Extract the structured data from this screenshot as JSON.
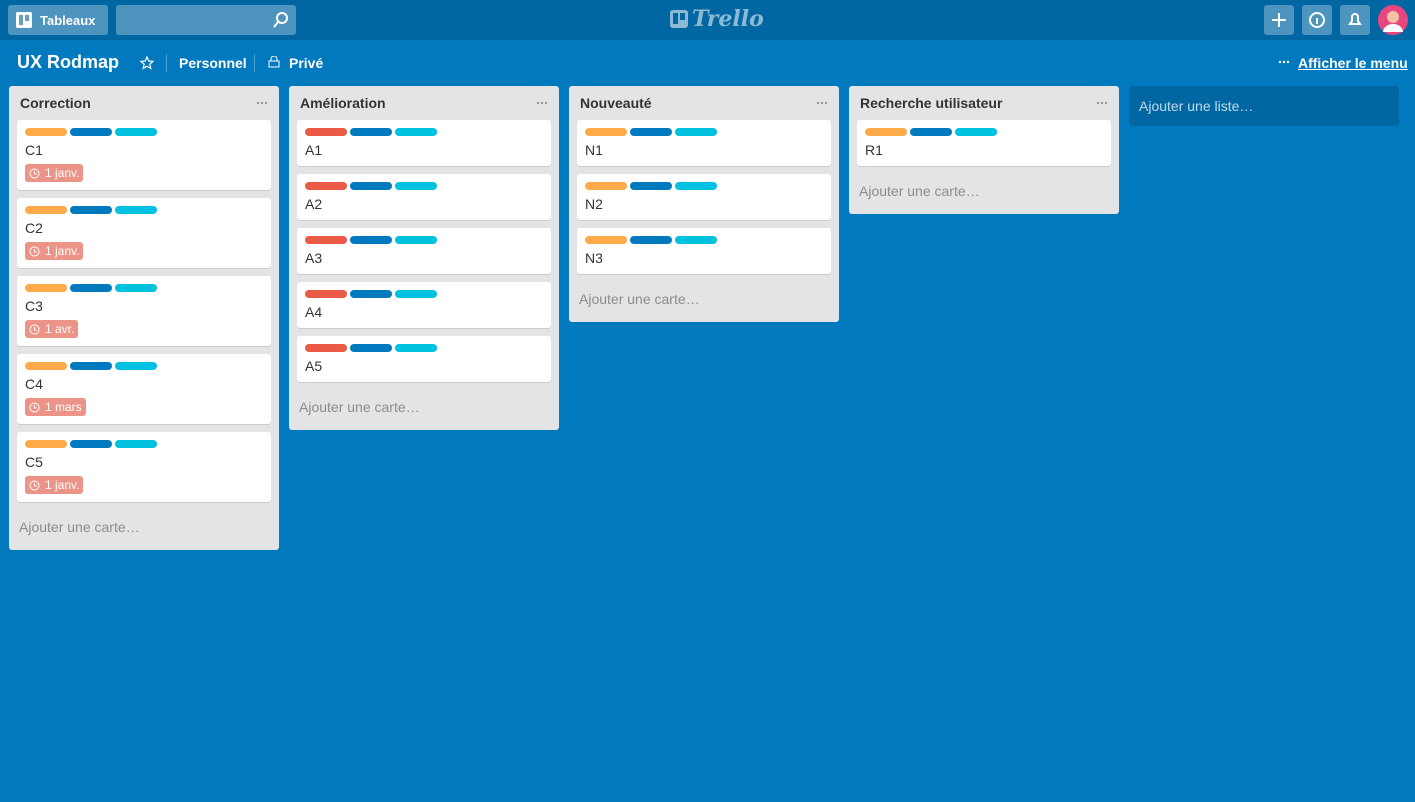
{
  "header": {
    "boards_button": "Tableaux",
    "logo": "Trello"
  },
  "board": {
    "title": "UX Rodmap",
    "team": "Personnel",
    "visibility": "Privé",
    "menu": "Afficher le menu"
  },
  "lists": [
    {
      "name": "Correction",
      "add_card": "Ajouter une carte…",
      "cards": [
        {
          "title": "C1",
          "labels": [
            "#ffab4a",
            "#0079bf",
            "#00c2e0"
          ],
          "due": "1 janv."
        },
        {
          "title": "C2",
          "labels": [
            "#ffab4a",
            "#0079bf",
            "#00c2e0"
          ],
          "due": "1 janv."
        },
        {
          "title": "C3",
          "labels": [
            "#ffab4a",
            "#0079bf",
            "#00c2e0"
          ],
          "due": "1 avr."
        },
        {
          "title": "C4",
          "labels": [
            "#ffab4a",
            "#0079bf",
            "#00c2e0"
          ],
          "due": "1 mars"
        },
        {
          "title": "C5",
          "labels": [
            "#ffab4a",
            "#0079bf",
            "#00c2e0"
          ],
          "due": "1 janv."
        }
      ]
    },
    {
      "name": "Amélioration",
      "add_card": "Ajouter une carte…",
      "cards": [
        {
          "title": "A1",
          "labels": [
            "#eb5a46",
            "#0079bf",
            "#00c2e0"
          ]
        },
        {
          "title": "A2",
          "labels": [
            "#eb5a46",
            "#0079bf",
            "#00c2e0"
          ]
        },
        {
          "title": "A3",
          "labels": [
            "#eb5a46",
            "#0079bf",
            "#00c2e0"
          ]
        },
        {
          "title": "A4",
          "labels": [
            "#eb5a46",
            "#0079bf",
            "#00c2e0"
          ]
        },
        {
          "title": "A5",
          "labels": [
            "#eb5a46",
            "#0079bf",
            "#00c2e0"
          ]
        }
      ]
    },
    {
      "name": "Nouveauté",
      "add_card": "Ajouter une carte…",
      "cards": [
        {
          "title": "N1",
          "labels": [
            "#ffab4a",
            "#0079bf",
            "#00c2e0"
          ]
        },
        {
          "title": "N2",
          "labels": [
            "#ffab4a",
            "#0079bf",
            "#00c2e0"
          ]
        },
        {
          "title": "N3",
          "labels": [
            "#ffab4a",
            "#0079bf",
            "#00c2e0"
          ]
        }
      ]
    },
    {
      "name": "Recherche utilisateur",
      "add_card": "Ajouter une carte…",
      "cards": [
        {
          "title": "R1",
          "labels": [
            "#ffab4a",
            "#0079bf",
            "#00c2e0"
          ]
        }
      ]
    }
  ],
  "add_list": "Ajouter une liste…"
}
